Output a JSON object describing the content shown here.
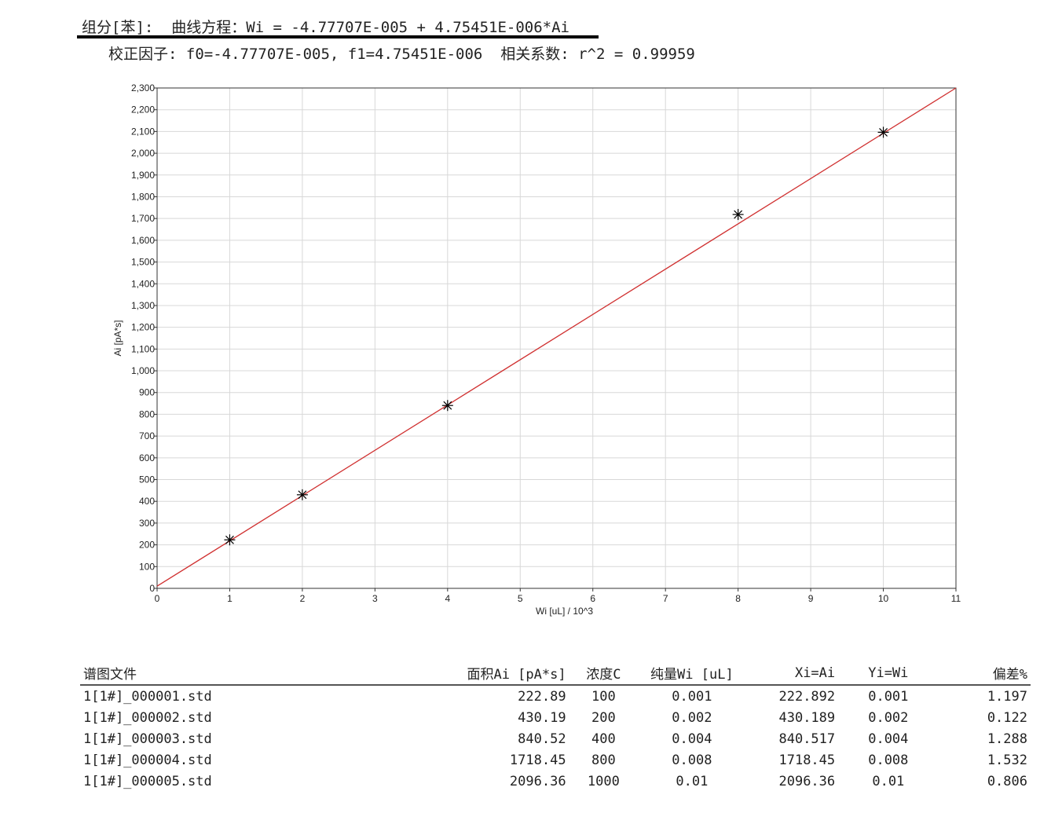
{
  "header": {
    "equation_line": "组分[苯]:  曲线方程：Wi = -4.77707E-005 + 4.75451E-006*Ai",
    "factors_line": "校正因子: f0=-4.77707E-005, f1=4.75451E-006  相关系数: r^2 = 0.99959"
  },
  "chart_data": {
    "type": "scatter",
    "xlabel": "Wi [uL] / 10^3",
    "ylabel": "Ai [pA*s]",
    "xlim": [
      0,
      11
    ],
    "ylim": [
      0,
      2300
    ],
    "xticks": [
      0,
      1,
      2,
      3,
      4,
      5,
      6,
      7,
      8,
      9,
      10,
      11
    ],
    "yticks": [
      0,
      100,
      200,
      300,
      400,
      500,
      600,
      700,
      800,
      900,
      1000,
      1100,
      1200,
      1300,
      1400,
      1500,
      1600,
      1700,
      1800,
      1900,
      2000,
      2100,
      2200,
      2300
    ],
    "grid": true,
    "points": {
      "x": [
        1,
        2,
        4,
        8,
        10
      ],
      "y": [
        222.89,
        430.19,
        840.52,
        1718.45,
        2096.36
      ],
      "marker": "asterisk",
      "color": "#000000"
    },
    "fit_line": {
      "x": [
        0,
        11
      ],
      "y": [
        10,
        2300
      ],
      "color": "#d03030"
    }
  },
  "table": {
    "headers": [
      "谱图文件",
      "面积Ai [pA*s]",
      "浓度C",
      "纯量Wi [uL]",
      "Xi=Ai",
      "Yi=Wi",
      "偏差%"
    ],
    "rows": [
      [
        "1[1#]_000001.std",
        "222.89",
        "100",
        "0.001",
        "222.892",
        "0.001",
        "1.197"
      ],
      [
        "1[1#]_000002.std",
        "430.19",
        "200",
        "0.002",
        "430.189",
        "0.002",
        "0.122"
      ],
      [
        "1[1#]_000003.std",
        "840.52",
        "400",
        "0.004",
        "840.517",
        "0.004",
        "1.288"
      ],
      [
        "1[1#]_000004.std",
        "1718.45",
        "800",
        "0.008",
        "1718.45",
        "0.008",
        "1.532"
      ],
      [
        "1[1#]_000005.std",
        "2096.36",
        "1000",
        "0.01",
        "2096.36",
        "0.01",
        "0.806"
      ]
    ]
  }
}
